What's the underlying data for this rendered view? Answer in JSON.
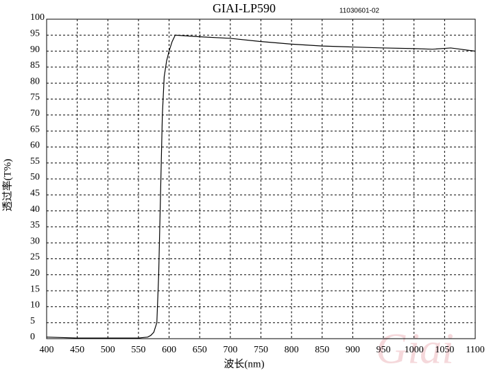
{
  "chart_data": {
    "type": "line",
    "title": "GIAI-LP590",
    "subtitle": "11030601-02",
    "xlabel": "波长(nm)",
    "ylabel": "透过率(T%)",
    "watermark": "Giai",
    "x": [
      400,
      450,
      500,
      550,
      565,
      570,
      575,
      580,
      583,
      586,
      589,
      592,
      596,
      600,
      605,
      610,
      650,
      700,
      750,
      800,
      850,
      900,
      950,
      1000,
      1030,
      1060,
      1100
    ],
    "series": [
      {
        "name": "GIAI-LP590",
        "color": "#000000",
        "values": [
          0.5,
          0.2,
          0.2,
          0.2,
          0.5,
          1,
          2,
          5,
          20,
          45,
          70,
          82,
          87,
          90,
          93,
          95,
          94.5,
          94,
          93,
          92.2,
          91.6,
          91.3,
          91,
          90.8,
          90.6,
          91,
          90
        ]
      }
    ],
    "xlim": [
      400,
      1100
    ],
    "xticks": [
      400,
      450,
      500,
      550,
      600,
      650,
      700,
      750,
      800,
      850,
      900,
      950,
      1000,
      1050,
      1100
    ],
    "ylim": [
      0,
      100
    ],
    "yticks": [
      0,
      5,
      10,
      15,
      20,
      25,
      30,
      35,
      40,
      45,
      50,
      55,
      60,
      65,
      70,
      75,
      80,
      85,
      90,
      95,
      100
    ],
    "grid": true
  }
}
